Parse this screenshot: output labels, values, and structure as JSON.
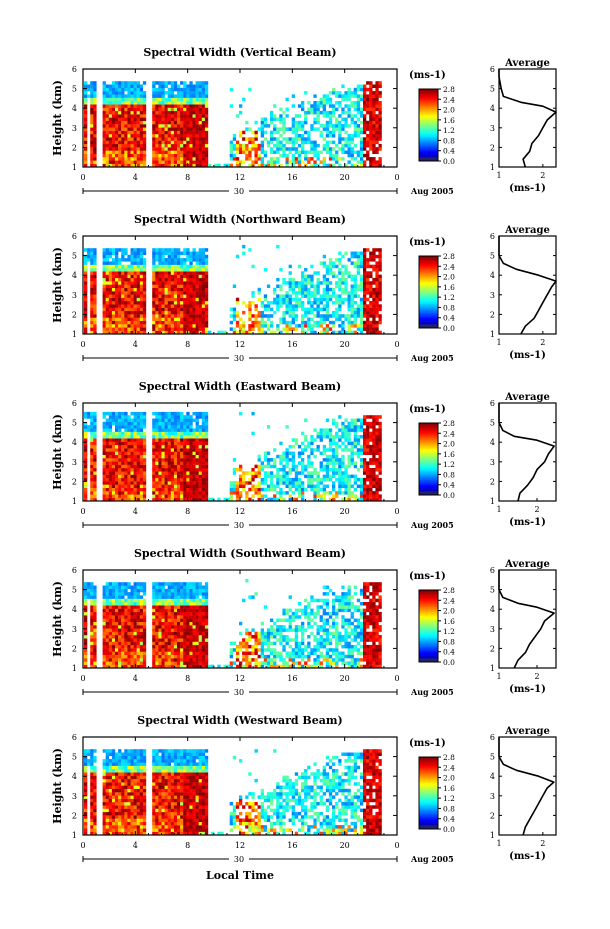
{
  "figure": {
    "x_axis_title": "Local Time",
    "date_label": "Aug 2005",
    "day_label": "30"
  },
  "chart_data": [
    {
      "type": "heatmap",
      "title": "Spectral Width (Vertical Beam)",
      "ylabel": "Height (km)",
      "xlabel": "Local Time",
      "x_ticks": [
        "0",
        "4",
        "8",
        "12",
        "16",
        "20",
        "0"
      ],
      "y_ticks": [
        "1",
        "2",
        "3",
        "4",
        "5",
        "6"
      ],
      "xlim": [
        0,
        24
      ],
      "ylim": [
        1,
        6
      ],
      "colorbar": {
        "unit": "(ms-1)",
        "min": 0.0,
        "max": 2.8,
        "ticks": [
          "2.8",
          "2.4",
          "2.0",
          "1.6",
          "1.2",
          "0.8",
          "0.4",
          "0.0"
        ]
      },
      "average_profile": {
        "title": "Average",
        "xlabel": "(ms-1)",
        "x_ticks": [
          "1",
          "2"
        ],
        "y_ticks": [
          "1",
          "2",
          "3",
          "4",
          "5",
          "6"
        ],
        "xlim": [
          1,
          2.3
        ],
        "points": [
          [
            1.6,
            1.0
          ],
          [
            1.55,
            1.4
          ],
          [
            1.7,
            1.8
          ],
          [
            1.75,
            2.2
          ],
          [
            1.9,
            2.6
          ],
          [
            2.0,
            3.0
          ],
          [
            2.1,
            3.4
          ],
          [
            2.3,
            3.8
          ],
          [
            2.0,
            4.1
          ],
          [
            1.5,
            4.3
          ],
          [
            1.1,
            4.6
          ],
          [
            1.05,
            5.0
          ],
          [
            1.0,
            5.6
          ],
          [
            1.0,
            6.0
          ]
        ]
      }
    },
    {
      "type": "heatmap",
      "title": "Spectral Width (Northward Beam)",
      "ylabel": "Height (km)",
      "xlabel": "Local Time",
      "x_ticks": [
        "0",
        "4",
        "8",
        "12",
        "16",
        "20",
        "0"
      ],
      "y_ticks": [
        "1",
        "2",
        "3",
        "4",
        "5",
        "6"
      ],
      "xlim": [
        0,
        24
      ],
      "ylim": [
        1,
        6
      ],
      "colorbar": {
        "unit": "(ms-1)",
        "min": 0.0,
        "max": 2.8,
        "ticks": [
          "2.8",
          "2.4",
          "2.0",
          "1.6",
          "1.2",
          "0.8",
          "0.4",
          "0.0"
        ]
      },
      "average_profile": {
        "title": "Average",
        "xlabel": "(ms-1)",
        "x_ticks": [
          "1",
          "2"
        ],
        "y_ticks": [
          "1",
          "2",
          "3",
          "4",
          "5",
          "6"
        ],
        "xlim": [
          1,
          2.3
        ],
        "points": [
          [
            1.5,
            1.0
          ],
          [
            1.6,
            1.4
          ],
          [
            1.8,
            1.8
          ],
          [
            1.9,
            2.2
          ],
          [
            2.0,
            2.6
          ],
          [
            2.1,
            3.0
          ],
          [
            2.2,
            3.4
          ],
          [
            2.3,
            3.7
          ],
          [
            1.9,
            4.0
          ],
          [
            1.4,
            4.3
          ],
          [
            1.1,
            4.6
          ],
          [
            1.0,
            5.0
          ],
          [
            1.0,
            5.6
          ],
          [
            1.0,
            6.0
          ]
        ]
      }
    },
    {
      "type": "heatmap",
      "title": "Spectral Width (Eastward Beam)",
      "ylabel": "Height (km)",
      "xlabel": "Local Time",
      "x_ticks": [
        "0",
        "4",
        "8",
        "12",
        "16",
        "20",
        "0"
      ],
      "y_ticks": [
        "1",
        "2",
        "3",
        "4",
        "5",
        "6"
      ],
      "xlim": [
        0,
        24
      ],
      "ylim": [
        1,
        6
      ],
      "colorbar": {
        "unit": "(ms-1)",
        "min": 0.0,
        "max": 2.8,
        "ticks": [
          "2.8",
          "2.4",
          "2.0",
          "1.6",
          "1.2",
          "0.8",
          "0.4",
          "0.0"
        ]
      },
      "average_profile": {
        "title": "Average",
        "xlabel": "(ms-1)",
        "x_ticks": [
          "1",
          "2"
        ],
        "y_ticks": [
          "1",
          "2",
          "3",
          "4",
          "5",
          "6"
        ],
        "xlim": [
          1,
          2.5
        ],
        "points": [
          [
            1.5,
            1.0
          ],
          [
            1.55,
            1.4
          ],
          [
            1.75,
            1.8
          ],
          [
            1.9,
            2.2
          ],
          [
            2.0,
            2.6
          ],
          [
            2.2,
            3.0
          ],
          [
            2.3,
            3.4
          ],
          [
            2.45,
            3.8
          ],
          [
            2.0,
            4.1
          ],
          [
            1.4,
            4.3
          ],
          [
            1.1,
            4.6
          ],
          [
            1.0,
            5.0
          ],
          [
            1.0,
            5.6
          ],
          [
            1.0,
            6.0
          ]
        ]
      }
    },
    {
      "type": "heatmap",
      "title": "Spectral Width (Southward Beam)",
      "ylabel": "Height (km)",
      "xlabel": "Local Time",
      "x_ticks": [
        "0",
        "4",
        "8",
        "12",
        "16",
        "20",
        "0"
      ],
      "y_ticks": [
        "1",
        "2",
        "3",
        "4",
        "5",
        "6"
      ],
      "xlim": [
        0,
        24
      ],
      "ylim": [
        1,
        6
      ],
      "colorbar": {
        "unit": "(ms-1)",
        "min": 0.0,
        "max": 2.8,
        "ticks": [
          "2.8",
          "2.4",
          "2.0",
          "1.6",
          "1.2",
          "0.8",
          "0.4",
          "0.0"
        ]
      },
      "average_profile": {
        "title": "Average",
        "xlabel": "(ms-1)",
        "x_ticks": [
          "1",
          "2"
        ],
        "y_ticks": [
          "1",
          "2",
          "3",
          "4",
          "5",
          "6"
        ],
        "xlim": [
          1,
          2.5
        ],
        "points": [
          [
            1.4,
            1.0
          ],
          [
            1.5,
            1.4
          ],
          [
            1.7,
            1.8
          ],
          [
            1.8,
            2.2
          ],
          [
            1.95,
            2.6
          ],
          [
            2.1,
            3.0
          ],
          [
            2.2,
            3.4
          ],
          [
            2.45,
            3.8
          ],
          [
            2.0,
            4.1
          ],
          [
            1.5,
            4.3
          ],
          [
            1.1,
            4.6
          ],
          [
            1.0,
            5.0
          ],
          [
            1.0,
            5.6
          ],
          [
            1.0,
            6.0
          ]
        ]
      }
    },
    {
      "type": "heatmap",
      "title": "Spectral Width (Westward Beam)",
      "ylabel": "Height (km)",
      "xlabel": "Local Time",
      "x_ticks": [
        "0",
        "4",
        "8",
        "12",
        "16",
        "20",
        "0"
      ],
      "y_ticks": [
        "1",
        "2",
        "3",
        "4",
        "5",
        "6"
      ],
      "xlim": [
        0,
        24
      ],
      "ylim": [
        1,
        6
      ],
      "colorbar": {
        "unit": "(ms-1)",
        "min": 0.0,
        "max": 2.8,
        "ticks": [
          "2.8",
          "2.4",
          "2.0",
          "1.6",
          "1.2",
          "0.8",
          "0.4",
          "0.0"
        ]
      },
      "average_profile": {
        "title": "Average",
        "xlabel": "(ms-1)",
        "x_ticks": [
          "1",
          "2"
        ],
        "y_ticks": [
          "1",
          "2",
          "3",
          "4",
          "5",
          "6"
        ],
        "xlim": [
          1,
          2.3
        ],
        "points": [
          [
            1.55,
            1.0
          ],
          [
            1.6,
            1.4
          ],
          [
            1.7,
            1.8
          ],
          [
            1.8,
            2.2
          ],
          [
            1.9,
            2.6
          ],
          [
            2.0,
            3.0
          ],
          [
            2.1,
            3.4
          ],
          [
            2.25,
            3.7
          ],
          [
            1.9,
            4.0
          ],
          [
            1.4,
            4.3
          ],
          [
            1.1,
            4.6
          ],
          [
            1.0,
            5.0
          ],
          [
            1.0,
            5.6
          ],
          [
            1.0,
            6.0
          ]
        ]
      }
    }
  ]
}
